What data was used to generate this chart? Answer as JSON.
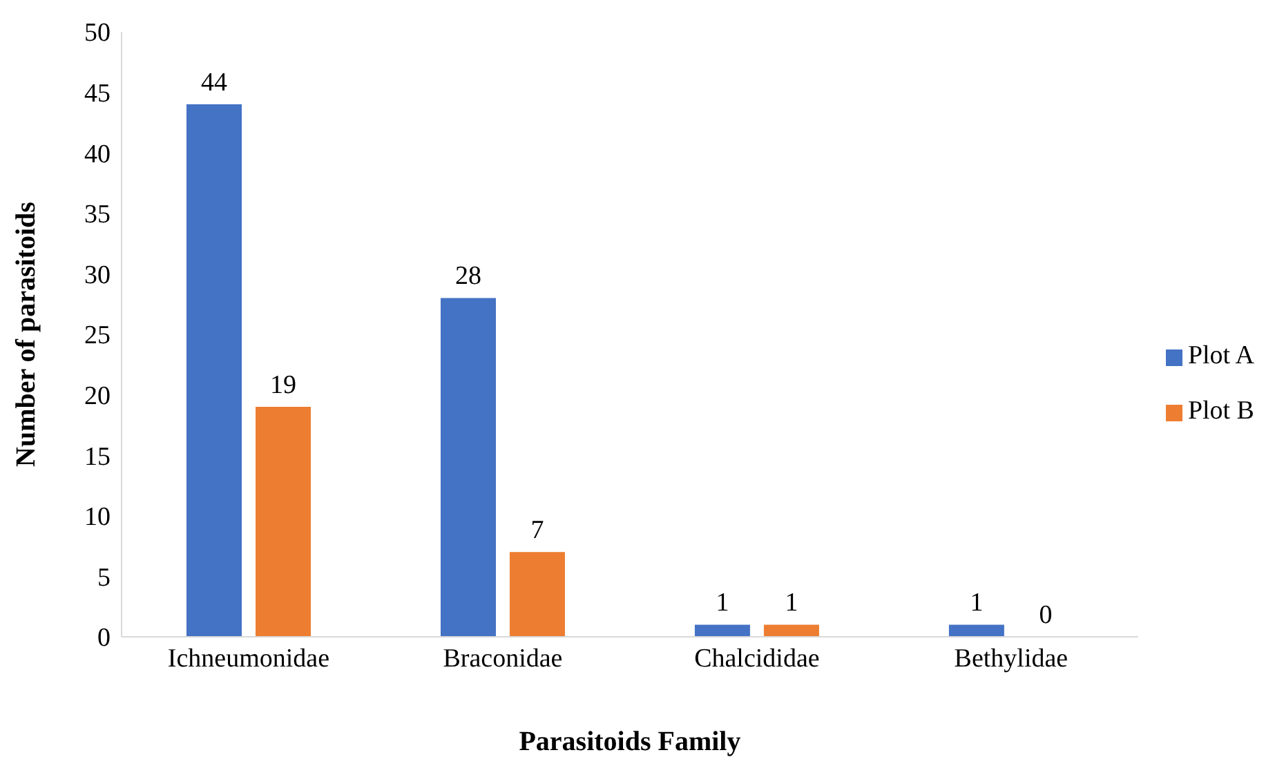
{
  "chart_data": {
    "type": "bar",
    "xlabel": "Parasitoids Family",
    "ylabel": "Number of parasitoids",
    "categories": [
      "Ichneumonidae",
      "Braconidae",
      "Chalcididae",
      "Bethylidae"
    ],
    "series": [
      {
        "name": "Plot A",
        "color": "#4472c4",
        "values": [
          44,
          28,
          1,
          1
        ]
      },
      {
        "name": "Plot B",
        "color": "#ed7d31",
        "values": [
          19,
          7,
          1,
          0
        ]
      }
    ],
    "ylim": [
      0,
      50
    ],
    "yticks": [
      0,
      5,
      10,
      15,
      20,
      25,
      30,
      35,
      40,
      45,
      50
    ],
    "data_labels": true,
    "legend": "right"
  }
}
